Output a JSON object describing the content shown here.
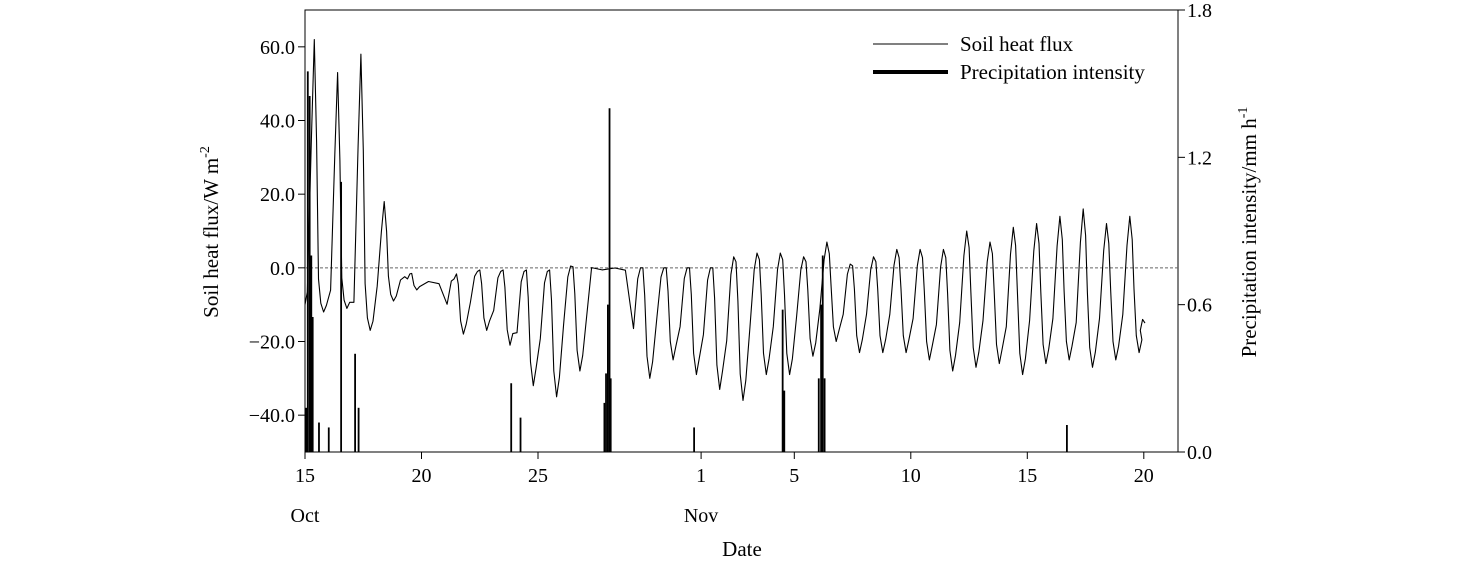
{
  "chart_data": {
    "type": "line",
    "xlabel": "Date",
    "x_ticks": [
      {
        "day": 15,
        "label": "15",
        "sub": "Oct"
      },
      {
        "day": 20,
        "label": "20",
        "sub": ""
      },
      {
        "day": 25,
        "label": "25",
        "sub": ""
      },
      {
        "day": 32,
        "label": "1",
        "sub": "Nov"
      },
      {
        "day": 36,
        "label": "5",
        "sub": ""
      },
      {
        "day": 41,
        "label": "10",
        "sub": ""
      },
      {
        "day": 46,
        "label": "15",
        "sub": ""
      },
      {
        "day": 51,
        "label": "20",
        "sub": ""
      }
    ],
    "xlim": [
      15,
      51.4
    ],
    "left_axis": {
      "label": "Soil heat flux/W m",
      "label_sup": "-2",
      "ylim": [
        -50,
        70
      ],
      "ticks": [
        -40,
        -20,
        0,
        20,
        40,
        60
      ],
      "tick_labels": [
        "−40.0",
        "−20.0",
        "0.0",
        "20.0",
        "40.0",
        "60.0"
      ]
    },
    "right_axis": {
      "label": "Precipitation intensity/mm h",
      "label_sup": "-1",
      "ylim": [
        0,
        1.8
      ],
      "ticks": [
        0,
        0.6,
        1.2,
        1.8
      ],
      "tick_labels": [
        "0.0",
        "0.6",
        "1.2",
        "1.8"
      ]
    },
    "zero_line": true,
    "legend_position": "top-right",
    "series": [
      {
        "name": "Soil heat flux",
        "axis": "left",
        "line": "thin",
        "daily_extrema": [
          {
            "day": 15.5,
            "max": 62,
            "min": -12
          },
          {
            "day": 16.5,
            "max": 53,
            "min": -11
          },
          {
            "day": 17.5,
            "max": 58,
            "min": -17
          },
          {
            "day": 18.5,
            "max": 18,
            "min": -9
          },
          {
            "day": 19.5,
            "max": -3,
            "min": -6
          },
          {
            "day": 20.5,
            "max": -3,
            "min": -5
          },
          {
            "day": 21.5,
            "max": -3,
            "min": -18
          },
          {
            "day": 22.5,
            "max": -1,
            "min": -17
          },
          {
            "day": 23.5,
            "max": -1,
            "min": -21
          },
          {
            "day": 24.5,
            "max": -1,
            "min": -32
          },
          {
            "day": 25.5,
            "max": -1,
            "min": -35
          },
          {
            "day": 26.5,
            "max": 0.5,
            "min": -28
          },
          {
            "day": 27.5,
            "max": 0.5,
            "min": -1
          },
          {
            "day": 28.5,
            "max": 0.3,
            "min": -1
          },
          {
            "day": 29.5,
            "max": 0,
            "min": -30
          },
          {
            "day": 30.5,
            "max": 0,
            "min": -25
          },
          {
            "day": 31.5,
            "max": 0,
            "min": -29
          },
          {
            "day": 32.5,
            "max": 0,
            "min": -33
          },
          {
            "day": 33.5,
            "max": 3,
            "min": -36
          },
          {
            "day": 34.5,
            "max": 4,
            "min": -29
          },
          {
            "day": 35.5,
            "max": 4,
            "min": -29
          },
          {
            "day": 36.5,
            "max": 3,
            "min": -24
          },
          {
            "day": 37.5,
            "max": 7,
            "min": -20
          },
          {
            "day": 38.5,
            "max": 1,
            "min": -23
          },
          {
            "day": 39.5,
            "max": 3,
            "min": -23
          },
          {
            "day": 40.5,
            "max": 5,
            "min": -23
          },
          {
            "day": 41.5,
            "max": 5,
            "min": -25
          },
          {
            "day": 42.5,
            "max": 5,
            "min": -28
          },
          {
            "day": 43.5,
            "max": 10,
            "min": -27
          },
          {
            "day": 44.5,
            "max": 7,
            "min": -26
          },
          {
            "day": 45.5,
            "max": 11,
            "min": -29
          },
          {
            "day": 46.5,
            "max": 12,
            "min": -26
          },
          {
            "day": 47.5,
            "max": 14,
            "min": -25
          },
          {
            "day": 48.5,
            "max": 16,
            "min": -27
          },
          {
            "day": 49.5,
            "max": 12,
            "min": -25
          },
          {
            "day": 50.5,
            "max": 14,
            "min": -23
          }
        ],
        "end_value": -15
      },
      {
        "name": "Precipitation intensity",
        "axis": "right",
        "line": "thick",
        "type": "bar",
        "events": [
          [
            15.05,
            0.18
          ],
          [
            15.12,
            1.55
          ],
          [
            15.2,
            1.45
          ],
          [
            15.27,
            0.8
          ],
          [
            15.33,
            0.55
          ],
          [
            15.6,
            0.12
          ],
          [
            16.02,
            0.1
          ],
          [
            16.55,
            1.1
          ],
          [
            17.15,
            0.4
          ],
          [
            17.3,
            0.18
          ],
          [
            23.85,
            0.28
          ],
          [
            24.25,
            0.14
          ],
          [
            27.85,
            0.2
          ],
          [
            27.92,
            0.32
          ],
          [
            28.0,
            0.6
          ],
          [
            28.07,
            1.4
          ],
          [
            28.12,
            0.3
          ],
          [
            31.7,
            0.1
          ],
          [
            35.5,
            0.58
          ],
          [
            35.57,
            0.25
          ],
          [
            37.05,
            0.3
          ],
          [
            37.15,
            0.6
          ],
          [
            37.22,
            0.8
          ],
          [
            37.3,
            0.3
          ],
          [
            47.7,
            0.11
          ]
        ]
      }
    ]
  }
}
